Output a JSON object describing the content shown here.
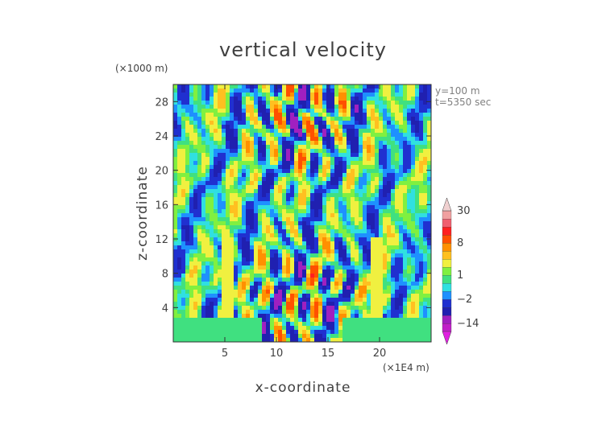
{
  "chart_data": {
    "type": "heatmap",
    "title": "vertical velocity",
    "xlabel": "x-coordinate",
    "ylabel": "z-coordinate",
    "x_unit": "(×1E4 m)",
    "y_unit": "(×1000 m)",
    "xlim": [
      0,
      25
    ],
    "ylim": [
      0,
      30
    ],
    "x_ticks": [
      5,
      10,
      15,
      20
    ],
    "x_tick_labels": [
      "5",
      "10",
      "15",
      "20"
    ],
    "y_ticks": [
      4,
      8,
      12,
      16,
      20,
      24,
      28
    ],
    "y_tick_labels": [
      "4",
      "8",
      "12",
      "16",
      "20",
      "24",
      "28"
    ],
    "annotations": [
      "y=100  m",
      "t=5350 sec"
    ],
    "colorbar": {
      "labels": [
        "30",
        "8",
        "1",
        "−2",
        "−14"
      ],
      "label_levels": [
        30,
        8,
        1,
        -2,
        -14
      ],
      "levels": [
        -20,
        -14,
        -8,
        -4,
        -2,
        -1,
        0,
        1,
        2,
        4,
        6,
        8,
        12,
        18,
        24,
        30
      ],
      "colors": [
        "#e020e0",
        "#c020c8",
        "#a020c0",
        "#2020b0",
        "#2030d0",
        "#1e90ff",
        "#30e0e0",
        "#40e080",
        "#80f040",
        "#f0f040",
        "#ffc020",
        "#ff9000",
        "#ff5000",
        "#ff2020",
        "#f06070",
        "#f0a0a0",
        "#f0d0d0"
      ]
    }
  }
}
